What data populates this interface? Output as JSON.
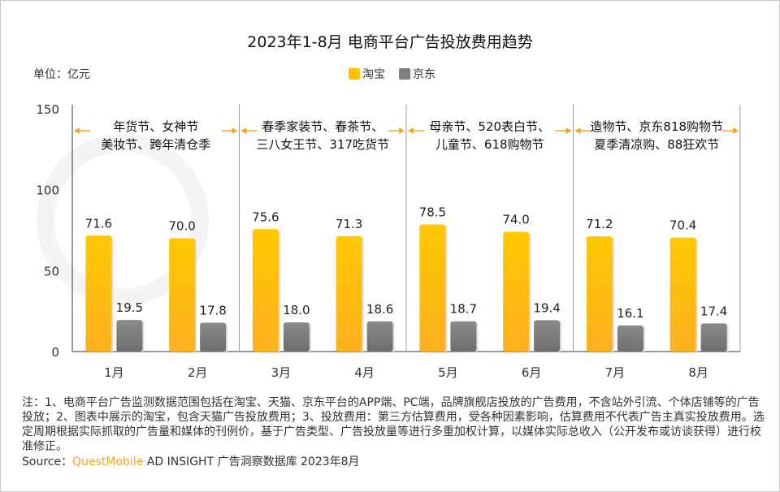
{
  "title": "2023年1-8月 电商平台广告投放费用趋势",
  "unit": "单位：亿元",
  "colors": {
    "taobao": "#FFC000",
    "jd": "#7F7F7F",
    "accent": "#F5A623"
  },
  "notes": "注：1、电商平台广告监测数据范围包括在淘宝、天猫、京东平台的APP端、PC端，品牌旗舰店投放的广告费用，不含站外引流、个体店铺等的广告投放；2、图表中展示的淘宝，包含天猫广告投放费用；3、投放费用：第三方估算费用，受各种因素影响，估算费用不代表广告主真实投放费用。选定周期根据实际抓取的广告量和媒体的刊例价，基于广告类型、广告投放量等进行多重加权计算，以媒体实际总收入（公开发布或访谈获得）进行校准修正。",
  "source": {
    "label": "Source：",
    "brand": "QuestMobile",
    "rest": " AD INSIGHT 广告洞察数据库 2023年8月"
  },
  "chart_data": {
    "type": "bar",
    "title": "2023年1-8月 电商平台广告投放费用趋势",
    "ylabel": "单位：亿元",
    "ylim": [
      0,
      150
    ],
    "yticks": [
      0,
      50,
      100,
      150
    ],
    "categories": [
      "1月",
      "2月",
      "3月",
      "4月",
      "5月",
      "6月",
      "7月",
      "8月"
    ],
    "series": [
      {
        "name": "淘宝",
        "values": [
          71.6,
          70.0,
          75.6,
          71.3,
          78.5,
          74.0,
          71.2,
          70.4
        ]
      },
      {
        "name": "京东",
        "values": [
          19.5,
          17.8,
          18.0,
          18.6,
          18.7,
          19.4,
          16.1,
          17.4
        ]
      }
    ],
    "legend": "top-center",
    "annotations": [
      {
        "lines": [
          "年货节、女神节",
          "美妆节、跨年清仓季"
        ]
      },
      {
        "lines": [
          "春季家装节、春茶节、",
          "三八女王节、317吃货节"
        ]
      },
      {
        "lines": [
          "母亲节、520表白节、",
          "儿童节、618购物节"
        ]
      },
      {
        "lines": [
          "造物节、京东818购物节",
          "夏季清凉购、88狂欢节"
        ]
      }
    ]
  }
}
